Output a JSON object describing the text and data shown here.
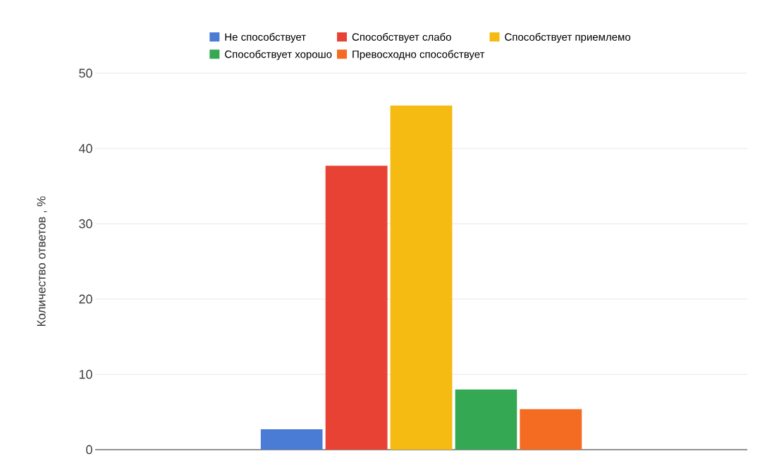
{
  "chart_data": {
    "type": "bar",
    "ylabel": "Количество ответов , %",
    "categories": [
      null
    ],
    "series": [
      {
        "name": "Не способствует",
        "color": "#4a7bd5",
        "values": [
          2.7
        ]
      },
      {
        "name": "Способствует слабо",
        "color": "#e84235",
        "values": [
          37.7
        ]
      },
      {
        "name": "Способствует приемлемо",
        "color": "#f5bb13",
        "values": [
          45.7
        ]
      },
      {
        "name": "Способствует хорошо",
        "color": "#34a853",
        "values": [
          8.0
        ]
      },
      {
        "name": "Превосходно способствует",
        "color": "#f36c21",
        "values": [
          5.4
        ]
      }
    ],
    "ylim": [
      0,
      50
    ],
    "yticks": [
      0,
      10,
      20,
      30,
      40,
      50
    ],
    "grid": "y",
    "legend": "top"
  }
}
